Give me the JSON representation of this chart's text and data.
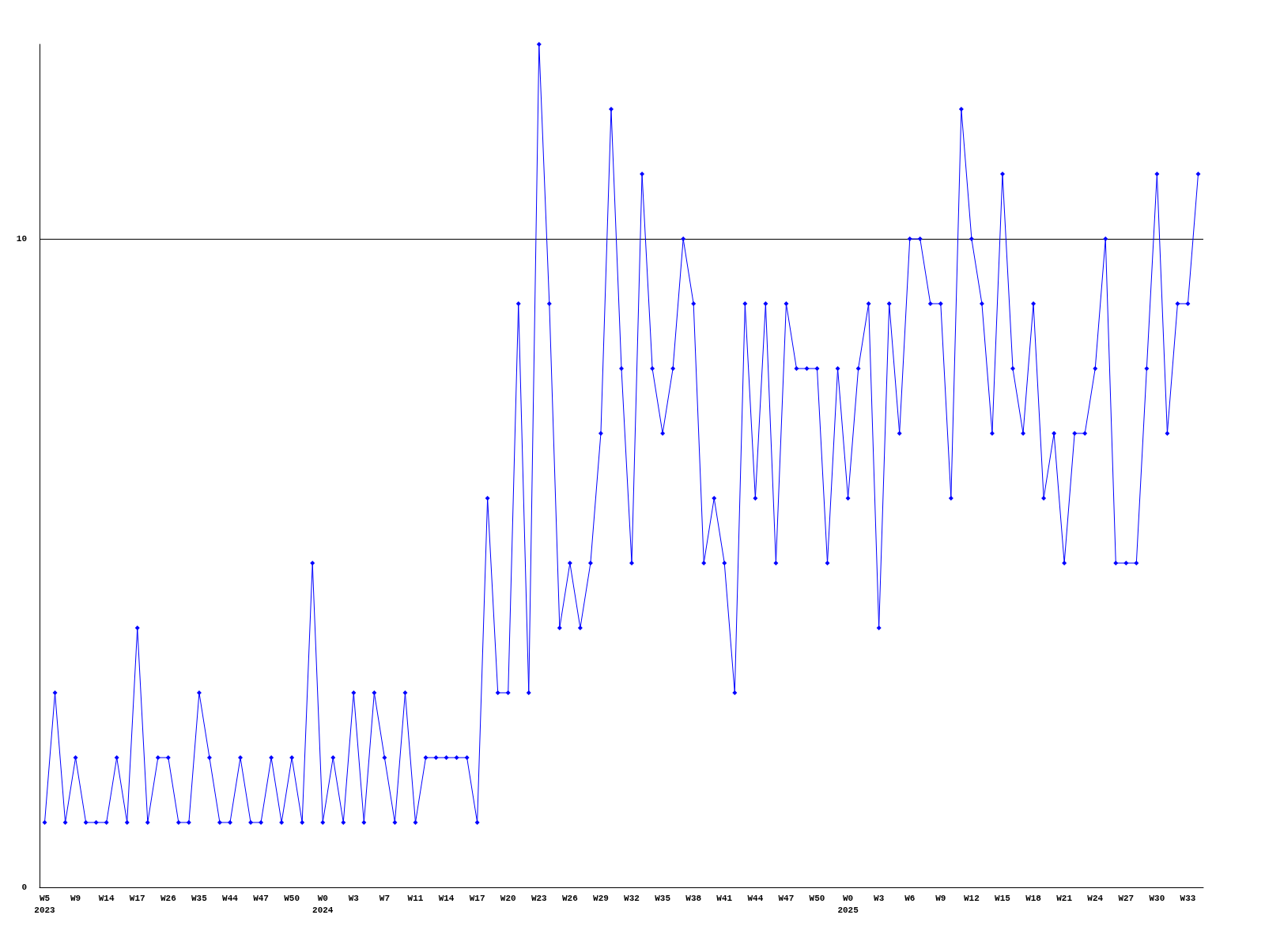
{
  "chart_data": {
    "type": "line",
    "categories": [
      "W5\n2023",
      null,
      null,
      "W9",
      null,
      null,
      "W14",
      null,
      null,
      "W17",
      null,
      null,
      "W26",
      null,
      null,
      "W35",
      null,
      null,
      "W44",
      null,
      null,
      "W47",
      null,
      null,
      "W50",
      null,
      null,
      "W0\n2024",
      null,
      null,
      "W3",
      null,
      null,
      "W7",
      null,
      null,
      "W11",
      null,
      null,
      "W14",
      null,
      null,
      "W17",
      null,
      null,
      "W20",
      null,
      null,
      "W23",
      null,
      null,
      "W26",
      null,
      null,
      "W29",
      null,
      null,
      "W32",
      null,
      null,
      "W35",
      null,
      null,
      "W38",
      null,
      null,
      "W41",
      null,
      null,
      "W44",
      null,
      null,
      "W47",
      null,
      null,
      "W50",
      null,
      null,
      "W0\n2025",
      null,
      null,
      "W3",
      null,
      null,
      "W6",
      null,
      null,
      "W9",
      null,
      null,
      "W12",
      null,
      null,
      "W15",
      null,
      null,
      "W18",
      null,
      null,
      "W21",
      null,
      null,
      "W24",
      null,
      null,
      "W27",
      null,
      null,
      "W30",
      null,
      null,
      "W33",
      null
    ],
    "series": [
      {
        "color": "#0000ff",
        "values": [
          1,
          3,
          1,
          2,
          1,
          1,
          1,
          2,
          1,
          4,
          1,
          2,
          2,
          1,
          1,
          3,
          2,
          1,
          1,
          2,
          1,
          1,
          2,
          1,
          2,
          1,
          5,
          1,
          2,
          1,
          3,
          1,
          3,
          2,
          1,
          3,
          1,
          2,
          2,
          2,
          2,
          2,
          1,
          6,
          3,
          3,
          9,
          3,
          13,
          9,
          4,
          5,
          4,
          5,
          7,
          12,
          8,
          5,
          11,
          8,
          7,
          8,
          10,
          9,
          5,
          6,
          5,
          3,
          9,
          6,
          9,
          5,
          9,
          8,
          8,
          8,
          5,
          8,
          6,
          8,
          9,
          4,
          9,
          7,
          10,
          10,
          9,
          9,
          6,
          12,
          10,
          9,
          7,
          11,
          8,
          7,
          9,
          6,
          7,
          5,
          7,
          7,
          8,
          10,
          5,
          5,
          5,
          8,
          11,
          7,
          9,
          9,
          11
        ]
      }
    ],
    "ylim": [
      0,
      13
    ],
    "yticks": [
      0,
      10
    ],
    "grid": "y",
    "marker": "diamond",
    "line_style": "solid"
  }
}
